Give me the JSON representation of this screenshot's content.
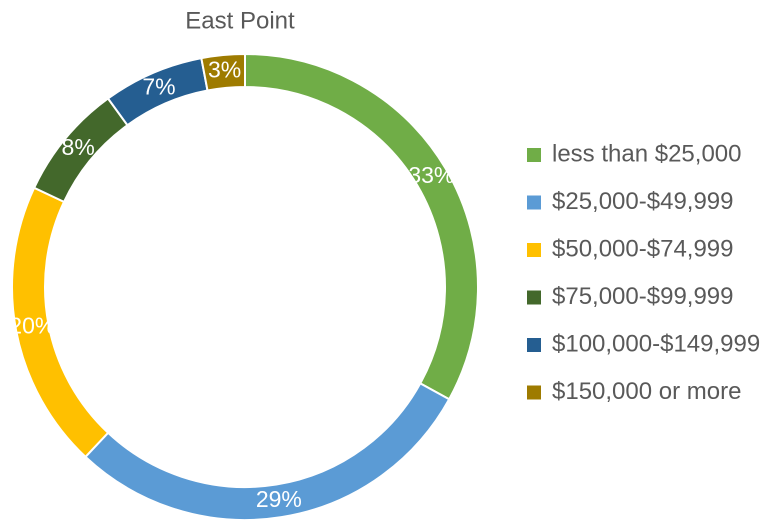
{
  "chart_data": {
    "type": "donut",
    "title": "East Point",
    "categories": [
      "less than $25,000",
      "$25,000-$49,999",
      "$50,000-$74,999",
      "$75,000-$99,999",
      "$100,000-$149,999",
      "$150,000 or more"
    ],
    "values": [
      33,
      29,
      20,
      8,
      7,
      3
    ],
    "value_labels": [
      "33%",
      "29%",
      "20%",
      "8%",
      "7%",
      "3%"
    ],
    "colors": [
      "#70ad47",
      "#5b9bd5",
      "#ffc000",
      "#43682b",
      "#255e91",
      "#9e7b00"
    ],
    "legend": "right"
  }
}
